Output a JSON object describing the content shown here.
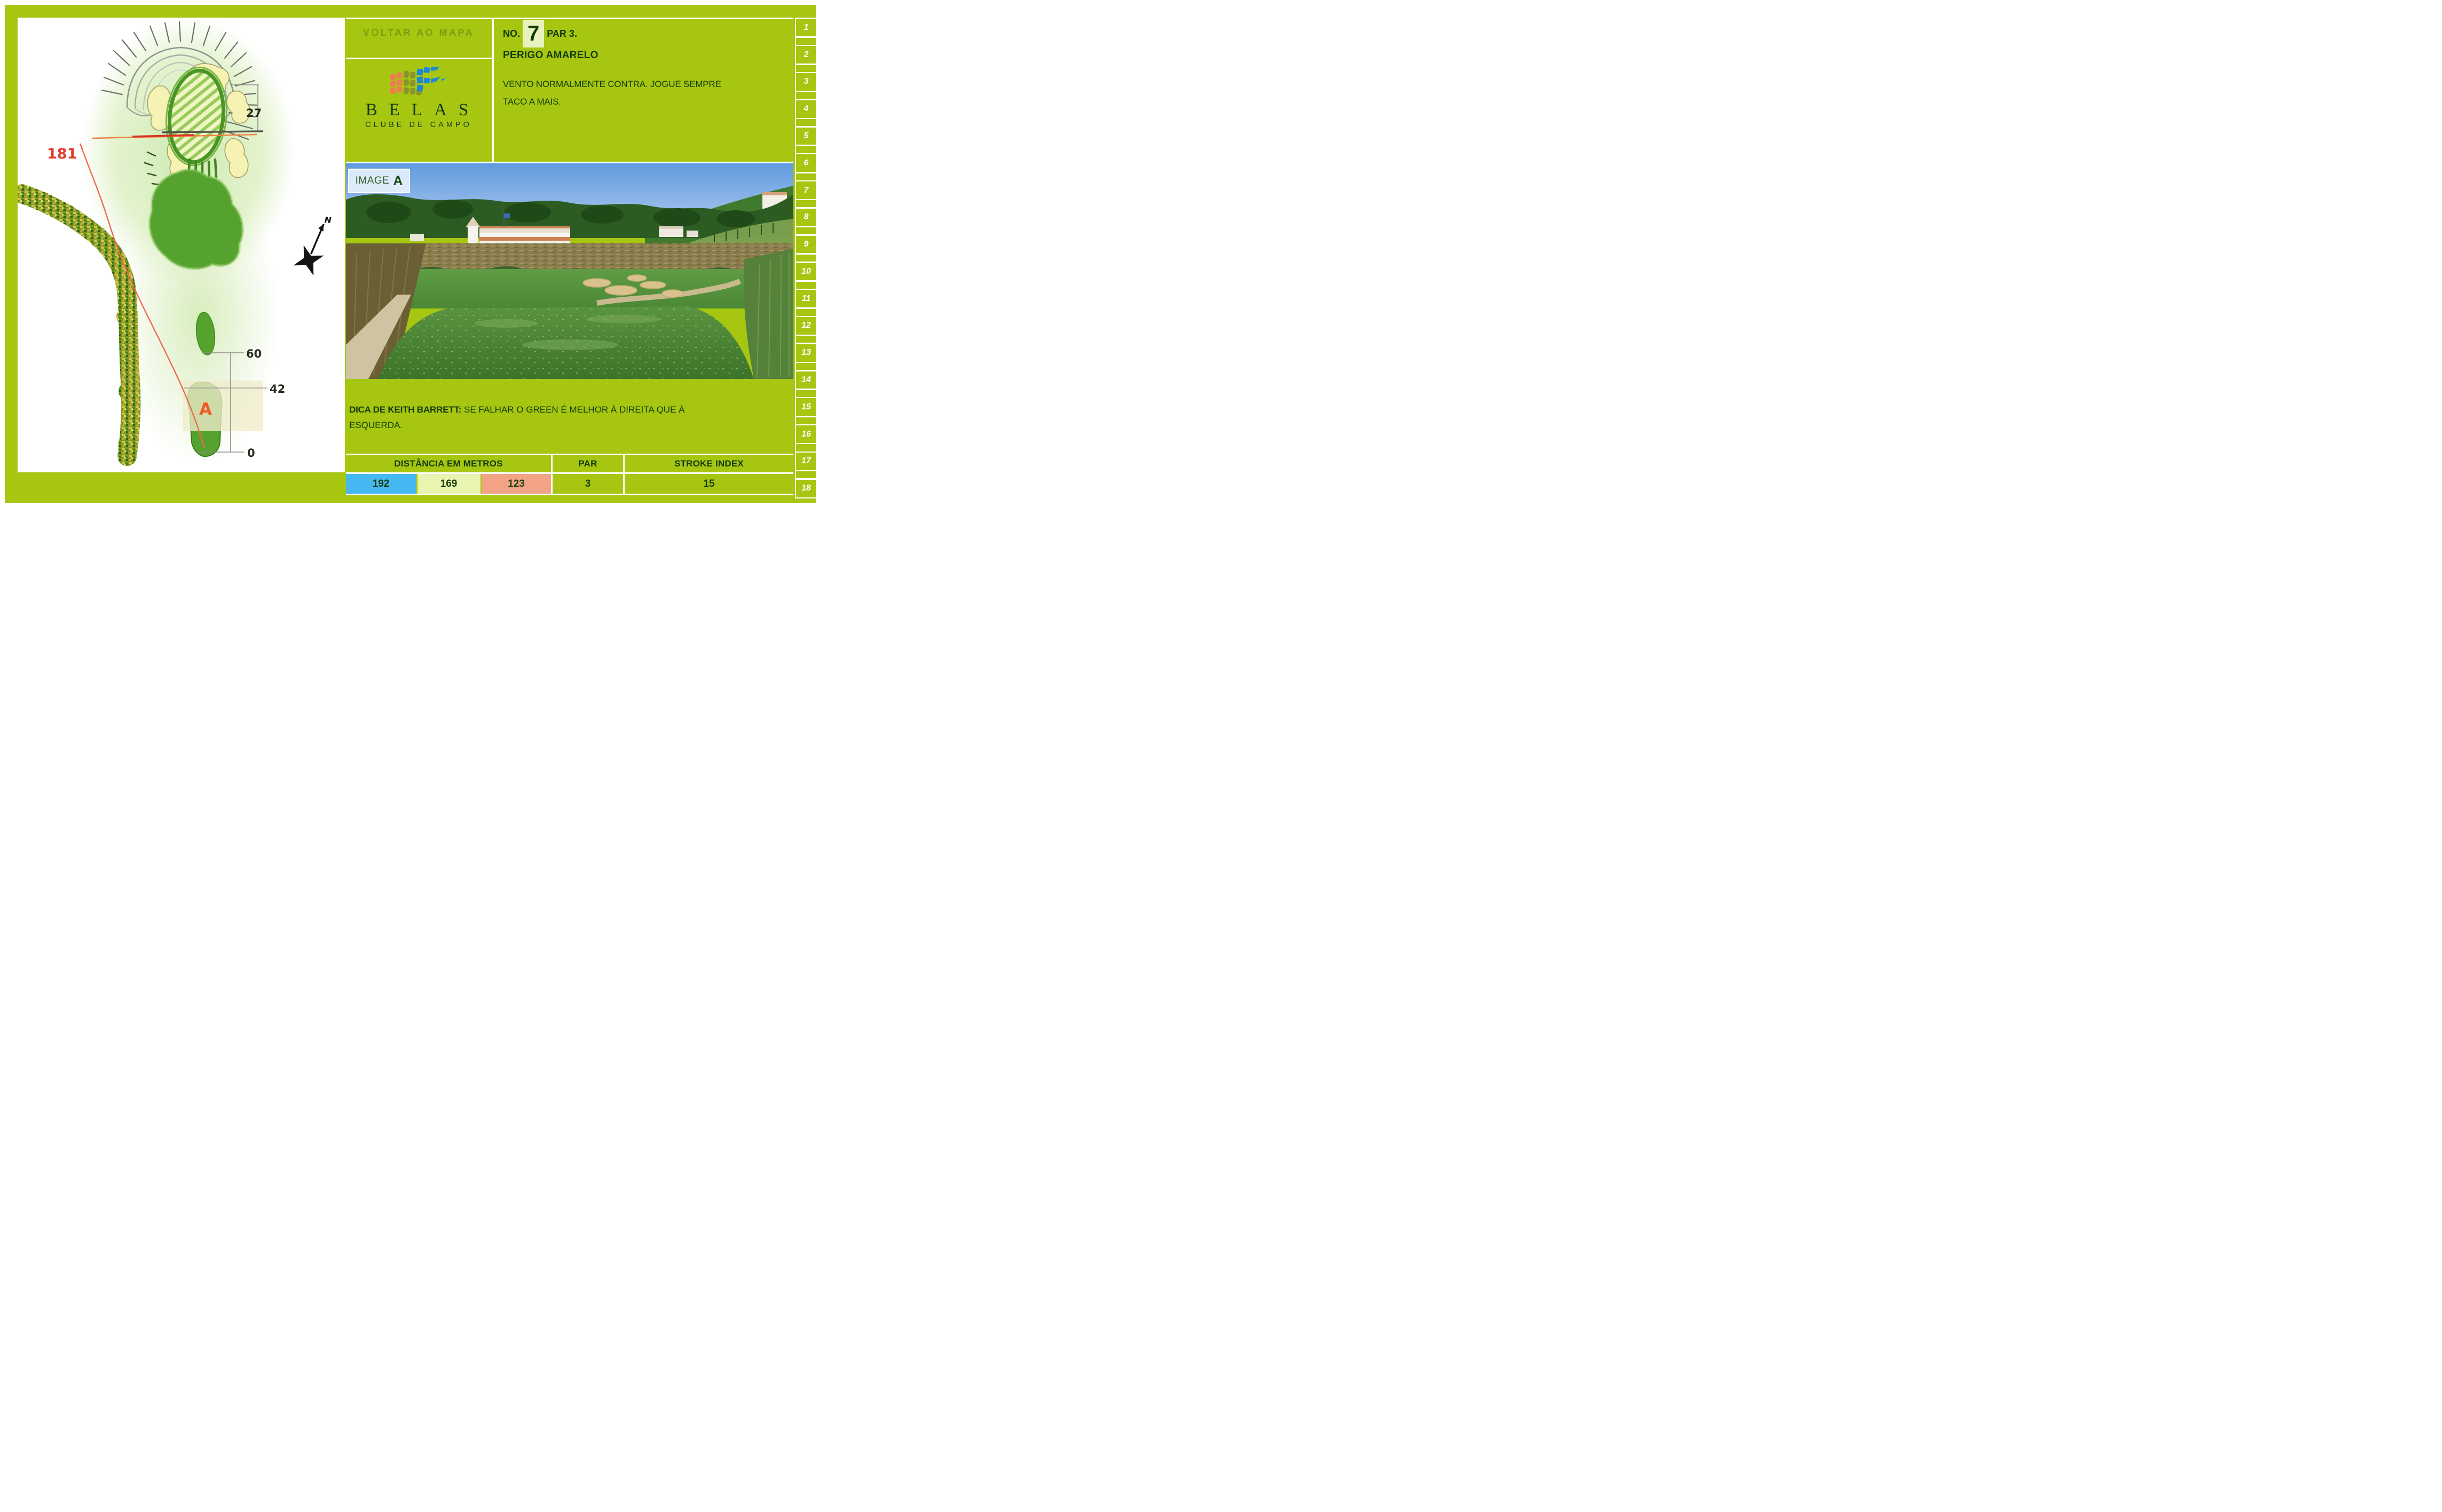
{
  "back_link": {
    "label": "VOLTAR AO MAPA"
  },
  "logo": {
    "title": "BELAS",
    "subtitle": "CLUBE DE CAMPO"
  },
  "hole_info": {
    "no_label": "NO.",
    "number": "7",
    "par_label": "PAR 3.",
    "name": "PERIGO AMARELO",
    "wind_note": "VENTO NORMALMENTE CONTRA. JOGUE SEMPRE TACO A MAIS."
  },
  "photo": {
    "label_prefix": "IMAGE",
    "label_letter": "A"
  },
  "tip": {
    "label": "DICA DE KEITH BARRETT:",
    "text": " SE FALHAR O GREEN É MELHOR À DIREITA QUE À ESQUERDA."
  },
  "map": {
    "distance_total": "181",
    "green_depth": "27",
    "marker_60": "60",
    "marker_42": "42",
    "marker_0": "0",
    "tee_marker": "A",
    "compass_label": "N"
  },
  "score_table": {
    "distance_header": "DISTÂNCIA EM METROS",
    "par_header": "PAR",
    "stroke_header": "STROKE INDEX",
    "par_value": "3",
    "stroke_value": "15",
    "tees": [
      {
        "name": "blue-tee",
        "color": "#45b8f2",
        "value": "192"
      },
      {
        "name": "yellow-tee",
        "color": "#e9f4b0",
        "value": "169"
      },
      {
        "name": "red-tee",
        "color": "#f2a285",
        "value": "123"
      }
    ]
  },
  "hole_nav": {
    "holes": [
      "1",
      "2",
      "3",
      "4",
      "5",
      "6",
      "7",
      "8",
      "9",
      "10",
      "11",
      "12",
      "13",
      "14",
      "15",
      "16",
      "17",
      "18"
    ]
  },
  "colors": {
    "page_green": "#a6c611",
    "dark_green_text": "#143c0a",
    "muted_link_green": "#7d9d10",
    "accent_red": "#e23a28",
    "accent_orange": "#ef8246"
  }
}
